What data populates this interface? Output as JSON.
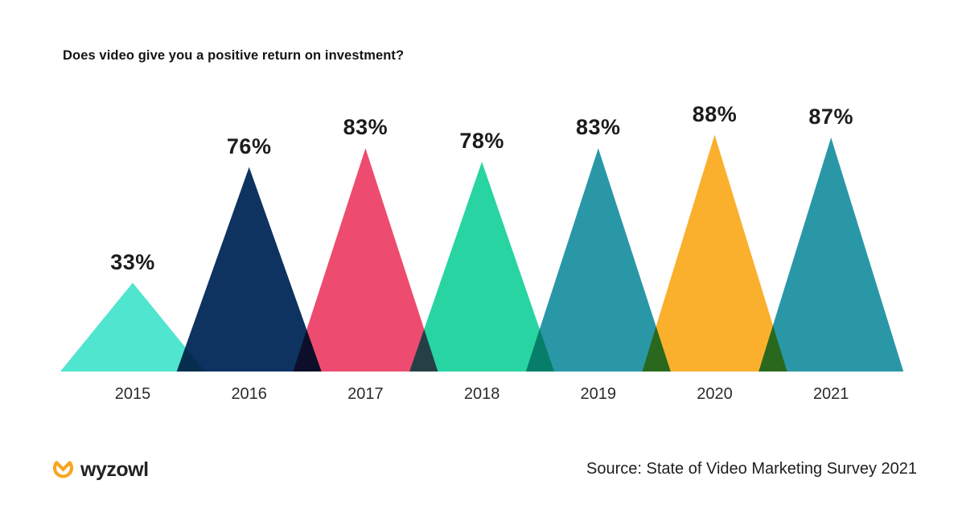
{
  "chart_data": {
    "type": "bar",
    "mark_shape": "overlapping-triangles",
    "blend_mode": "multiply",
    "title": "Does video give you a positive return on investment?",
    "categories": [
      "2015",
      "2016",
      "2017",
      "2018",
      "2019",
      "2020",
      "2021"
    ],
    "values": [
      33,
      76,
      83,
      78,
      83,
      88,
      87
    ],
    "value_labels": [
      "33%",
      "76%",
      "83%",
      "78%",
      "83%",
      "88%",
      "87%"
    ],
    "colors": [
      "#4FE5CE",
      "#0E3360",
      "#ED4B6F",
      "#28D4A2",
      "#2A97A7",
      "#FAB02D",
      "#2A97A7"
    ],
    "xlabel": "",
    "ylabel": "",
    "ylim": [
      0,
      100
    ],
    "grid": false,
    "legend": "none"
  },
  "footer": {
    "logo_text": "wyzowl",
    "logo_color": "#F5A623",
    "source": "Source: State of Video Marketing Survey 2021"
  }
}
